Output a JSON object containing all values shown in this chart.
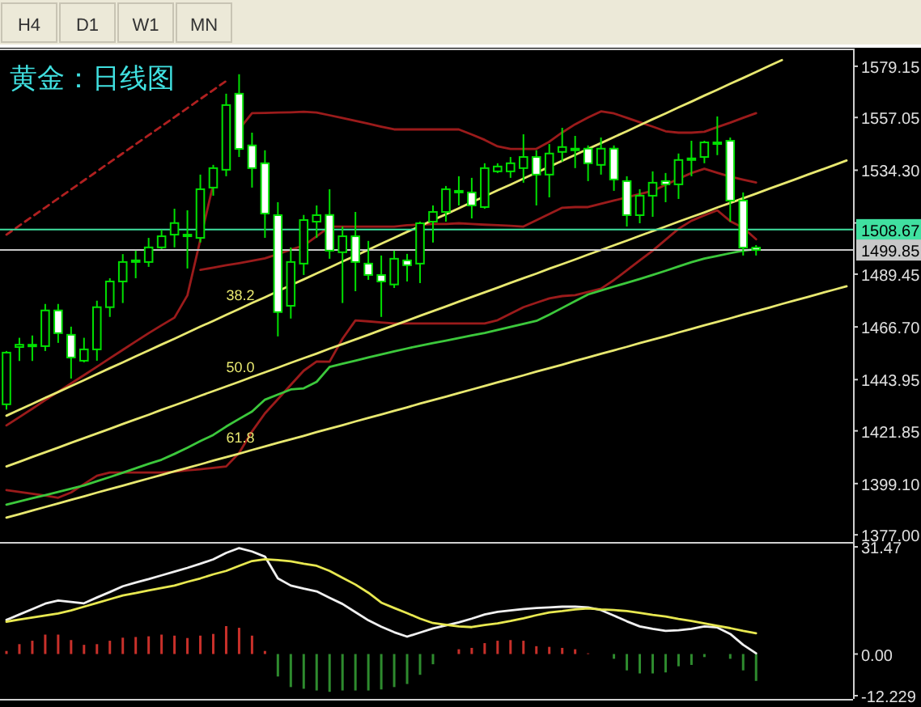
{
  "chart_data": [
    {
      "type": "candlestick",
      "title": "黄金：日线图",
      "tick_labels": "y",
      "grid": false,
      "legend": false,
      "ylim": [
        1375.3,
        1584.7
      ],
      "yticks": [
        {
          "value": 1579.15,
          "label": "1579.15"
        },
        {
          "value": 1557.05,
          "label": "1557.05"
        },
        {
          "value": 1534.3,
          "label": "1534.30"
        },
        {
          "value": 1511.55,
          "label": null
        },
        {
          "value": 1489.45,
          "label": "1489.45"
        },
        {
          "value": 1466.7,
          "label": "1466.70"
        },
        {
          "value": 1443.95,
          "label": "1443.95"
        },
        {
          "value": 1421.85,
          "label": "1421.85"
        },
        {
          "value": 1399.1,
          "label": "1399.10"
        },
        {
          "value": 1377,
          "label": "1377.00"
        }
      ],
      "categories": [
        null,
        null,
        null,
        null,
        null,
        null,
        null,
        null,
        null,
        null,
        null,
        null,
        null,
        null,
        null,
        null,
        null,
        null,
        null,
        null,
        null,
        null,
        null,
        null,
        null,
        null,
        null,
        null,
        null,
        null,
        null,
        null,
        null,
        null,
        null,
        null,
        null,
        null,
        null,
        null,
        null,
        null,
        null,
        null,
        null,
        null,
        null,
        null,
        null,
        null,
        null,
        null,
        null,
        null,
        null,
        null,
        null,
        null,
        null,
        null,
        null,
        null,
        null,
        null,
        null,
        null
      ],
      "ohlc": [
        [
          1433.3,
          1456.3,
          1431.0,
          1455.6
        ],
        [
          1458.0,
          1462.0,
          1452.0,
          1459.0
        ],
        [
          1459.0,
          1463.0,
          1452.0,
          1459.0
        ],
        [
          1458.4,
          1476.6,
          1456.3,
          1473.8
        ],
        [
          1473.8,
          1476.6,
          1459.8,
          1464.0
        ],
        [
          1463.3,
          1466.8,
          1444.4,
          1453.5
        ],
        [
          1452.1,
          1462.0,
          1451.4,
          1457.0
        ],
        [
          1457.0,
          1478.0,
          1452.1,
          1475.2
        ],
        [
          1475.2,
          1487.7,
          1471.0,
          1486.3
        ],
        [
          1486.3,
          1498.1,
          1477.0,
          1494.7
        ],
        [
          1495.4,
          1499.6,
          1487.7,
          1495.4
        ],
        [
          1494.7,
          1505.1,
          1492.6,
          1501.0
        ],
        [
          1501.0,
          1508.6,
          1500.3,
          1505.8
        ],
        [
          1506.5,
          1517.7,
          1501.0,
          1511.5
        ],
        [
          1506.5,
          1517.0,
          1491.9,
          1506.5
        ],
        [
          1505.1,
          1532.4,
          1503.1,
          1526.1
        ],
        [
          1526.8,
          1536.6,
          1523.3,
          1535.2
        ],
        [
          1534.5,
          1567.3,
          1531.7,
          1562.4
        ],
        [
          1567.3,
          1575.7,
          1540.0,
          1543.5
        ],
        [
          1545.0,
          1550.5,
          1526.8,
          1535.2
        ],
        [
          1537.3,
          1542.9,
          1505.1,
          1515.6
        ],
        [
          1514.9,
          1520.5,
          1462.6,
          1473.1
        ],
        [
          1475.8,
          1501.0,
          1470.3,
          1494.7
        ],
        [
          1494.0,
          1515.0,
          1489.1,
          1512.8
        ],
        [
          1512.1,
          1519.1,
          1505.1,
          1514.9
        ],
        [
          1515.0,
          1526.1,
          1496.1,
          1499.6
        ],
        [
          1498.9,
          1510.0,
          1477.0,
          1505.8
        ],
        [
          1505.8,
          1516.3,
          1482.1,
          1494.7
        ],
        [
          1494.0,
          1503.8,
          1487.0,
          1489.1
        ],
        [
          1489.1,
          1497.5,
          1471.0,
          1486.3
        ],
        [
          1485.0,
          1499.6,
          1483.5,
          1496.1
        ],
        [
          1495.4,
          1498.2,
          1486.3,
          1493.3
        ],
        [
          1494.0,
          1512.1,
          1485.6,
          1511.4
        ],
        [
          1512.1,
          1519.1,
          1503.1,
          1516.3
        ],
        [
          1516.3,
          1527.5,
          1512.1,
          1526.1
        ],
        [
          1525.4,
          1531.7,
          1519.1,
          1525.4
        ],
        [
          1524.7,
          1531.0,
          1513.5,
          1519.1
        ],
        [
          1518.4,
          1537.3,
          1517.7,
          1535.2
        ],
        [
          1533.8,
          1537.3,
          1533.1,
          1535.9
        ],
        [
          1533.8,
          1540.0,
          1531.0,
          1537.3
        ],
        [
          1535.2,
          1549.8,
          1528.9,
          1540.0
        ],
        [
          1540.0,
          1542.9,
          1519.1,
          1532.4
        ],
        [
          1532.4,
          1545.6,
          1522.6,
          1541.5
        ],
        [
          1542.2,
          1552.6,
          1538.0,
          1544.3
        ],
        [
          1543.6,
          1549.1,
          1535.2,
          1543.6
        ],
        [
          1543.6,
          1545.0,
          1529.6,
          1537.3
        ],
        [
          1536.6,
          1548.4,
          1532.4,
          1543.6
        ],
        [
          1543.6,
          1545.0,
          1525.4,
          1530.3
        ],
        [
          1529.6,
          1531.7,
          1510.0,
          1514.9
        ],
        [
          1514.9,
          1526.1,
          1511.4,
          1523.3
        ],
        [
          1523.3,
          1533.8,
          1514.2,
          1528.9
        ],
        [
          1529.6,
          1533.1,
          1520.5,
          1528.2
        ],
        [
          1528.2,
          1541.5,
          1521.9,
          1538.7
        ],
        [
          1539.4,
          1547.0,
          1531.7,
          1539.4
        ],
        [
          1540.0,
          1547.0,
          1537.3,
          1546.3
        ],
        [
          1546.3,
          1557.5,
          1540.8,
          1546.3
        ],
        [
          1547.0,
          1548.4,
          1512.1,
          1521.2
        ],
        [
          1521.2,
          1524.7,
          1497.5,
          1500.9
        ],
        [
          1500.9,
          1502.0,
          1497.5,
          1499.85
        ],
        null,
        null,
        null,
        null,
        null,
        null,
        null
      ],
      "series": [
        {
          "type": "line",
          "color": "#9b1b1b",
          "values": [
            1424.2,
            1427.8,
            1431.4,
            1435.1,
            1438.7,
            1442.3,
            1445.9,
            1449.5,
            1453.2,
            1456.8,
            1460.4,
            1464.0,
            1467.4,
            1470.7,
            1480.3,
            1504.3,
            1528.3,
            null,
            1551.9,
            1558.9,
            1559.0,
            1559.2,
            1559.3,
            1559.5,
            1559.2,
            1558.0,
            1556.8,
            1555.6,
            1554.4,
            1553.1,
            1551.9,
            1551.9,
            1551.9,
            1551.9,
            1551.9,
            1551.9,
            1549.7,
            1547.4,
            1544.6,
            1543.5,
            1543.5,
            1543.5,
            1546.6,
            1550.6,
            1554.1,
            1557.0,
            1559.7,
            1558.8,
            1556.9,
            1555.0,
            1553.1,
            1551.1,
            1550.5,
            1550.5,
            1550.9,
            1552.9,
            1554.8,
            1556.9,
            1558.9,
            null,
            null,
            null,
            null,
            null,
            null,
            null
          ]
        },
        {
          "type": "line",
          "color": "#9b1b1b",
          "values": [
            null,
            null,
            null,
            null,
            null,
            null,
            null,
            null,
            null,
            null,
            null,
            null,
            null,
            null,
            null,
            1491.3,
            1492.3,
            1493.3,
            1494.2,
            1495.2,
            1496.3,
            1498.1,
            1500.0,
            1501.8,
            1505.8,
            1510.0,
            1510.0,
            1510.0,
            1510.0,
            1510.0,
            1510.0,
            1510.6,
            1510.8,
            1511.1,
            1511.1,
            1511.4,
            1511.1,
            1510.8,
            1510.6,
            1510.3,
            1510.0,
            1512.7,
            1515.4,
            1518.1,
            1518.4,
            1518.4,
            1519.8,
            1521.2,
            1522.6,
            1524.0,
            1525.4,
            1528.0,
            1530.6,
            1533.1,
            1534.9,
            1533.2,
            1531.5,
            1530.2,
            1529.0,
            null,
            null,
            null,
            null,
            null,
            null,
            null
          ]
        },
        {
          "type": "line",
          "color": "#9b1b1b",
          "values": [
            1396.3,
            1395.5,
            1394.7,
            1393.9,
            1393.0,
            1395.3,
            1398.9,
            1402.5,
            1403.9,
            1403.9,
            1403.9,
            1403.9,
            1403.9,
            1404.2,
            1404.8,
            1405.3,
            1405.9,
            1406.5,
            1412.3,
            1421.6,
            1429.4,
            1435.5,
            1441.7,
            1447.8,
            1451.8,
            1451.7,
            1461.6,
            1469.5,
            1469.1,
            1468.6,
            1468.2,
            1468.2,
            1468.2,
            1468.2,
            1468.2,
            1468.2,
            1468.2,
            1468.2,
            1469.6,
            1472.4,
            1475.2,
            1477.1,
            1479.0,
            1480.0,
            1480.4,
            1481.8,
            1483.2,
            1486.9,
            1491.1,
            1495.4,
            1499.6,
            1504.3,
            1509.0,
            1512.5,
            1514.8,
            1517.0,
            1512.3,
            1509.5,
            1504.5,
            null,
            null,
            null,
            null,
            null,
            null,
            null
          ]
        },
        {
          "type": "line",
          "color": "#3cc83c",
          "values": [
            1390.0,
            1391.4,
            1392.8,
            1394.1,
            1395.5,
            1396.9,
            1398.3,
            1400.1,
            1401.9,
            1403.8,
            1405.7,
            1407.6,
            1409.4,
            1411.9,
            1414.6,
            1417.4,
            1420.1,
            1423.7,
            1427.0,
            1430.2,
            1435.3,
            1437.5,
            1439.7,
            1440.2,
            1443.0,
            1449.4,
            1450.8,
            1452.1,
            1453.5,
            1454.8,
            1456.1,
            1457.4,
            1458.6,
            1459.7,
            1460.8,
            1461.9,
            1463.0,
            1464.1,
            1465.4,
            1466.7,
            1468.0,
            1469.3,
            1472.0,
            1474.9,
            1477.8,
            1480.7,
            1482.4,
            1484.1,
            1485.7,
            1487.4,
            1489.1,
            1490.9,
            1492.8,
            1494.6,
            1496.2,
            1497.3,
            1498.5,
            1499.6,
            1500.3,
            null,
            null,
            null,
            null,
            null,
            null,
            null
          ]
        },
        {
          "type": "line",
          "name": "38.2",
          "color": "#e8e870",
          "values": [
            1428.4,
            1431.0,
            1433.5,
            1436.1,
            1438.6,
            1441.2,
            1443.7,
            1446.3,
            1448.9,
            1451.4,
            1454.0,
            1456.5,
            1459.1,
            1461.6,
            1464.2,
            1466.8,
            1469.3,
            1471.9,
            1474.4,
            1477.0,
            1479.5,
            1482.1,
            1484.7,
            1487.2,
            1489.8,
            1492.3,
            1494.9,
            1497.4,
            1500.0,
            1502.6,
            1505.1,
            1507.7,
            1510.2,
            1512.8,
            1515.3,
            1517.9,
            1520.5,
            1523.0,
            1525.6,
            1528.1,
            1530.7,
            1533.2,
            1535.8,
            1538.4,
            1540.9,
            1543.5,
            1546.0,
            1548.6,
            1551.1,
            1553.7,
            1556.3,
            1558.8,
            1561.4,
            1563.9,
            1566.5,
            1569.0,
            1571.6,
            1574.1,
            1576.7,
            1579.3,
            1581.8,
            null,
            null,
            null,
            null,
            null
          ]
        },
        {
          "type": "line",
          "name": "50.0",
          "color": "#e8e870",
          "values": [
            1406.5,
            1408.5,
            1410.6,
            1412.6,
            1414.6,
            1416.7,
            1418.7,
            1420.7,
            1422.7,
            1424.8,
            1426.8,
            1428.8,
            1430.9,
            1432.9,
            1434.9,
            1437.0,
            1439.0,
            1441.0,
            1443.0,
            1445.1,
            1447.1,
            1449.1,
            1451.2,
            1453.2,
            1455.2,
            1457.3,
            1459.3,
            1461.3,
            1463.3,
            1465.4,
            1467.4,
            1469.4,
            1471.5,
            1473.5,
            1475.5,
            1477.6,
            1479.6,
            1481.6,
            1483.6,
            1485.7,
            1487.7,
            1489.7,
            1491.8,
            1493.8,
            1495.8,
            1497.9,
            1499.9,
            1501.9,
            1503.9,
            1506.0,
            1508.0,
            1510.0,
            1512.1,
            1514.1,
            1516.1,
            1518.2,
            1520.2,
            1522.2,
            1524.2,
            1526.3,
            1528.3,
            1530.3,
            1532.4,
            1534.4,
            1536.4,
            1538.5
          ]
        },
        {
          "type": "line",
          "name": "61.8",
          "color": "#e8e870",
          "values": [
            1384.4,
            1385.9,
            1387.5,
            1389.0,
            1390.5,
            1392.1,
            1393.6,
            1395.2,
            1396.7,
            1398.2,
            1399.8,
            1401.3,
            1402.8,
            1404.4,
            1405.9,
            1407.4,
            1409.0,
            1410.5,
            1412.0,
            1413.6,
            1415.1,
            1416.7,
            1418.2,
            1419.7,
            1421.3,
            1422.8,
            1424.3,
            1425.9,
            1427.4,
            1428.9,
            1430.5,
            1432.0,
            1433.6,
            1435.1,
            1436.6,
            1438.2,
            1439.7,
            1441.2,
            1442.8,
            1444.3,
            1445.8,
            1447.4,
            1448.9,
            1450.4,
            1452.0,
            1453.5,
            1455.1,
            1456.6,
            1458.1,
            1459.7,
            1461.2,
            1462.7,
            1464.3,
            1465.8,
            1467.4,
            1468.9,
            1470.4,
            1472.0,
            1473.5,
            1475.0,
            1476.6,
            1478.1,
            1479.6,
            1481.2,
            1482.7,
            1484.2
          ]
        },
        {
          "type": "line",
          "color": "#b02020",
          "line_style": "dashed",
          "values": [
            1506.5,
            1510.4,
            1514.3,
            1518.2,
            1522.1,
            1526.0,
            1529.9,
            1533.8,
            1537.7,
            1541.6,
            1545.5,
            1549.4,
            1553.3,
            1557.2,
            1561.1,
            1565.0,
            1568.9,
            1572.8,
            null,
            null,
            null,
            null,
            null,
            null,
            null,
            null,
            null,
            null,
            null,
            null,
            null,
            null,
            null,
            null,
            null,
            null,
            null,
            null,
            null,
            null,
            null,
            null,
            null,
            null,
            null,
            null,
            null,
            null,
            null,
            null,
            null,
            null,
            null,
            null,
            null,
            null,
            null,
            null,
            null,
            null,
            null,
            null,
            null,
            null,
            null,
            null
          ]
        }
      ],
      "ref_lines": [
        {
          "axis": "y",
          "value": 1508.67,
          "label": "1508.67",
          "color": "#40e0a0"
        },
        {
          "axis": "y",
          "value": 1499.85,
          "label": "1499.85",
          "color": "#c8c8c8"
        }
      ],
      "annotations": [
        "H4",
        "D1",
        "W1",
        "MN"
      ]
    },
    {
      "type": "bar",
      "tick_labels": "y",
      "grid": false,
      "ylim": [
        -12.229,
        31.47
      ],
      "yticks": [
        {
          "value": 31.47,
          "label": "31.47"
        },
        {
          "value": 0,
          "label": "0.00"
        },
        {
          "value": -12.229,
          "label": "-12.229"
        }
      ],
      "categories": [
        null,
        null,
        null,
        null,
        null,
        null,
        null,
        null,
        null,
        null,
        null,
        null,
        null,
        null,
        null,
        null,
        null,
        null,
        null,
        null,
        null,
        null,
        null,
        null,
        null,
        null,
        null,
        null,
        null,
        null,
        null,
        null,
        null,
        null,
        null,
        null,
        null,
        null,
        null,
        null,
        null,
        null,
        null,
        null,
        null,
        null,
        null,
        null,
        null,
        null,
        null,
        null,
        null,
        null,
        null,
        null,
        null,
        null,
        null,
        null,
        null,
        null,
        null,
        null,
        null,
        null
      ],
      "series": [
        {
          "type": "bar",
          "values": [
            0.9,
            2.9,
            3.9,
            5.7,
            5.7,
            4.1,
            2.7,
            2.9,
            3.9,
            4.8,
            5.0,
            5.2,
            5.7,
            5.4,
            4.7,
            5.4,
            5.9,
            8.2,
            7.7,
            5.4,
            0.9,
            -6.6,
            -9.7,
            -10.2,
            -10.7,
            -11.1,
            -10.7,
            -10.7,
            -10.7,
            -10.4,
            -9.7,
            -8.8,
            -6.1,
            -3.0,
            0,
            1.4,
            1.8,
            3.2,
            3.9,
            4.1,
            3.9,
            2.3,
            2.1,
            1.8,
            1.4,
            0.2,
            0,
            -1.4,
            -4.8,
            -5.7,
            -5.7,
            -5.4,
            -3.6,
            -3.2,
            -0.9,
            0,
            -1.4,
            -4.8,
            -7.9,
            null,
            null,
            null,
            null,
            null,
            null,
            null
          ],
          "colors": [
            "#c8302a",
            "#c8302a",
            "#c8302a",
            "#c8302a",
            "#c8302a",
            "#c8302a",
            "#c8302a",
            "#c8302a",
            "#c8302a",
            "#c8302a",
            "#c8302a",
            "#c8302a",
            "#c8302a",
            "#c8302a",
            "#c8302a",
            "#c8302a",
            "#c8302a",
            "#c8302a",
            "#c8302a",
            "#c8302a",
            "#c8302a",
            "#2e8b2e",
            "#2e8b2e",
            "#2e8b2e",
            "#2e8b2e",
            "#2e8b2e",
            "#2e8b2e",
            "#2e8b2e",
            "#2e8b2e",
            "#2e8b2e",
            "#2e8b2e",
            "#2e8b2e",
            "#2e8b2e",
            "#2e8b2e",
            "#c8302a",
            "#c8302a",
            "#c8302a",
            "#c8302a",
            "#c8302a",
            "#c8302a",
            "#c8302a",
            "#c8302a",
            "#c8302a",
            "#c8302a",
            "#c8302a",
            "#c8302a",
            "#c8302a",
            "#2e8b2e",
            "#2e8b2e",
            "#2e8b2e",
            "#2e8b2e",
            "#2e8b2e",
            "#2e8b2e",
            "#2e8b2e",
            "#2e8b2e",
            "#2e8b2e",
            "#2e8b2e",
            "#2e8b2e",
            "#2e8b2e",
            null,
            null,
            null,
            null,
            null,
            null,
            null
          ]
        },
        {
          "type": "line",
          "color": "#f0f0f0",
          "values": [
            10.0,
            11.6,
            13.2,
            14.8,
            15.7,
            15.3,
            14.9,
            16.6,
            18.2,
            19.9,
            21.0,
            22.0,
            23.1,
            24.2,
            25.3,
            26.5,
            27.8,
            29.7,
            31.1,
            30.1,
            28.6,
            22.2,
            20.1,
            19.2,
            18.4,
            16.5,
            14.7,
            12.3,
            9.9,
            8.0,
            6.4,
            5.1,
            6.3,
            7.5,
            8.4,
            9.3,
            10.4,
            11.6,
            12.4,
            12.8,
            13.2,
            13.5,
            13.7,
            13.9,
            13.9,
            13.7,
            12.9,
            11.3,
            9.6,
            8.1,
            7.4,
            6.8,
            7.0,
            7.4,
            8.1,
            7.8,
            5.9,
            2.7,
            0.2,
            null,
            null,
            null,
            null,
            null,
            null,
            null
          ]
        },
        {
          "type": "line",
          "color": "#e8e850",
          "values": [
            9.5,
            10.1,
            10.7,
            11.3,
            11.9,
            12.8,
            13.9,
            15.0,
            16.1,
            17.2,
            17.9,
            18.7,
            19.4,
            20.1,
            21.2,
            22.2,
            23.4,
            24.4,
            25.9,
            27.3,
            27.8,
            27.6,
            27.2,
            26.5,
            25.9,
            24.4,
            22.4,
            20.4,
            18.0,
            15.1,
            13.5,
            12.0,
            10.4,
            9.1,
            8.6,
            8.1,
            7.9,
            8.5,
            9.0,
            9.7,
            10.5,
            11.4,
            12.2,
            12.6,
            13.1,
            13.4,
            13.1,
            12.9,
            12.6,
            12.1,
            11.5,
            11.0,
            10.3,
            9.7,
            9.0,
            8.3,
            7.6,
            6.8,
            6.1,
            null,
            null,
            null,
            null,
            null,
            null,
            null
          ]
        }
      ]
    }
  ]
}
